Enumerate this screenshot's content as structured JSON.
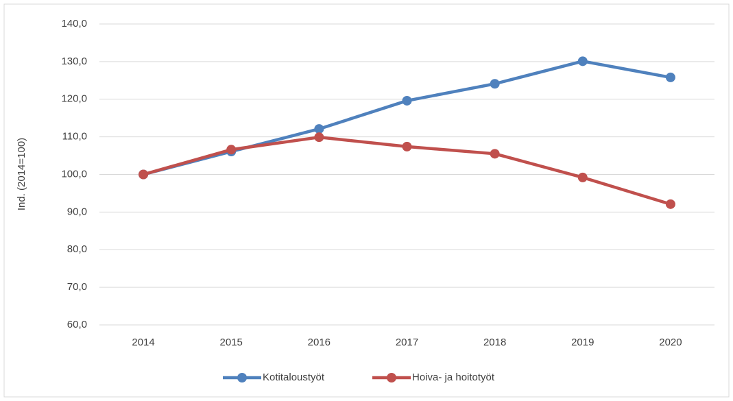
{
  "chart_data": {
    "type": "line",
    "y_label": "Ind. (2014=100)",
    "categories": [
      "2014",
      "2015",
      "2016",
      "2017",
      "2018",
      "2019",
      "2020"
    ],
    "series": [
      {
        "name": "Kotitaloustyöt",
        "color": "#4f81bd",
        "values": [
          100.0,
          106.1,
          112.1,
          119.6,
          124.1,
          130.1,
          125.8
        ]
      },
      {
        "name": "Hoiva- ja hoitotyöt",
        "color": "#c0504d",
        "values": [
          100.0,
          106.6,
          109.9,
          107.4,
          105.5,
          99.2,
          92.1
        ]
      }
    ],
    "ylim": [
      60,
      140
    ],
    "yticks": [
      {
        "value": 60,
        "label": "60,0"
      },
      {
        "value": 70,
        "label": "70,0"
      },
      {
        "value": 80,
        "label": "80,0"
      },
      {
        "value": 90,
        "label": "90,0"
      },
      {
        "value": 100,
        "label": "100,0"
      },
      {
        "value": 110,
        "label": "110,0"
      },
      {
        "value": 120,
        "label": "120,0"
      },
      {
        "value": 130,
        "label": "130,0"
      },
      {
        "value": 140,
        "label": "140,0"
      }
    ],
    "grid": true,
    "legend": "bottom"
  }
}
